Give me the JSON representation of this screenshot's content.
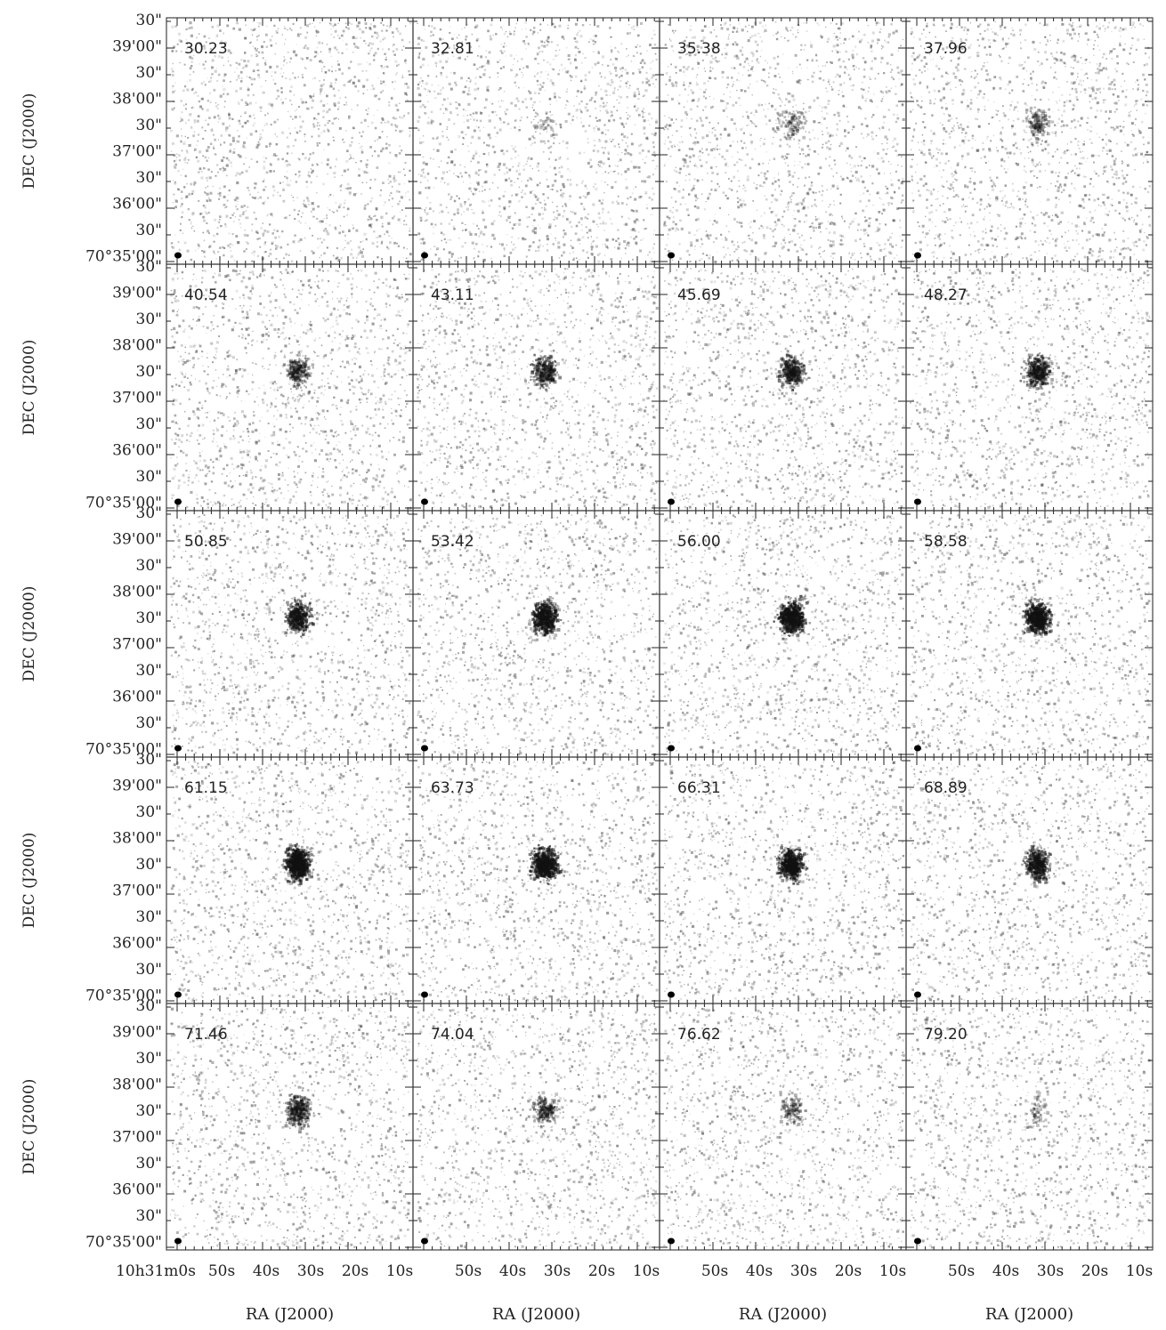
{
  "figure": {
    "panels": [
      {
        "velocity": "30.23",
        "emission": 0.0
      },
      {
        "velocity": "32.81",
        "emission": 0.05
      },
      {
        "velocity": "35.38",
        "emission": 0.15
      },
      {
        "velocity": "37.96",
        "emission": 0.22
      },
      {
        "velocity": "40.54",
        "emission": 0.35
      },
      {
        "velocity": "43.11",
        "emission": 0.45
      },
      {
        "velocity": "45.69",
        "emission": 0.5
      },
      {
        "velocity": "48.27",
        "emission": 0.55
      },
      {
        "velocity": "50.85",
        "emission": 0.6
      },
      {
        "velocity": "53.42",
        "emission": 0.75
      },
      {
        "velocity": "56.00",
        "emission": 0.85
      },
      {
        "velocity": "58.58",
        "emission": 0.8
      },
      {
        "velocity": "61.15",
        "emission": 0.9
      },
      {
        "velocity": "63.73",
        "emission": 0.85
      },
      {
        "velocity": "66.31",
        "emission": 0.75
      },
      {
        "velocity": "68.89",
        "emission": 0.6
      },
      {
        "velocity": "71.46",
        "emission": 0.45
      },
      {
        "velocity": "74.04",
        "emission": 0.3
      },
      {
        "velocity": "76.62",
        "emission": 0.2
      },
      {
        "velocity": "79.20",
        "emission": 0.1
      }
    ],
    "y_axis": {
      "title": "DEC (J2000)",
      "ticks": [
        "30\"",
        "39'00\"",
        "30\"",
        "38'00\"",
        "30\"",
        "37'00\"",
        "30\"",
        "36'00\"",
        "30\"",
        "70°35'00\""
      ]
    },
    "x_axis": {
      "title": "RA (J2000)",
      "first_ticks": [
        "10h31m0s",
        "50s",
        "40s",
        "30s",
        "20s",
        "10s"
      ],
      "ticks": [
        "50s",
        "40s",
        "30s",
        "20s",
        "10s"
      ]
    },
    "colors": {
      "ink": "#222222",
      "frame": "#444444",
      "background": "#ffffff"
    }
  }
}
